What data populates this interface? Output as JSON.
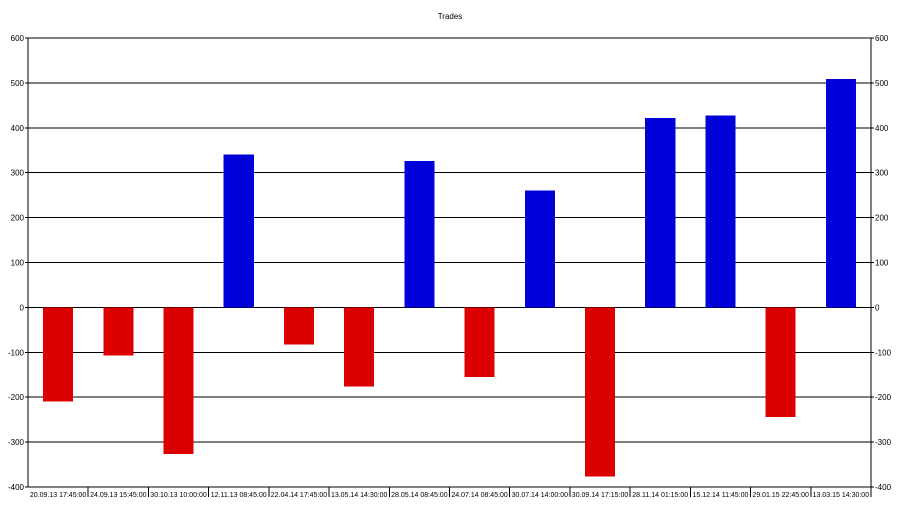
{
  "chart_data": {
    "type": "bar",
    "title": "Trades",
    "xlabel": "",
    "ylabel": "",
    "ylim": [
      -400,
      600
    ],
    "yticks": [
      600,
      500,
      400,
      300,
      200,
      100,
      0,
      -100,
      -200,
      -300,
      -400
    ],
    "grid": true,
    "legend": "none",
    "categories": [
      "20.09.13 17:45:00",
      "24.09.13 15:45:00",
      "30.10.13 10:00:00",
      "12.11.13 08:45:00",
      "22.04.14 17:45:00",
      "13.05.14 14:30:00",
      "28.05.14 08:45:00",
      "24.07.14 08:45:00",
      "30.07.14 14:00:00",
      "30.09.14 17:15:00",
      "28.11.14 01:15:00",
      "15.12.14 11:45:00",
      "29.01.15 22:45:00",
      "13.03.15 14:30:00"
    ],
    "values": [
      -210,
      -107,
      -327,
      341,
      -83,
      -176,
      326,
      -155,
      260,
      -377,
      422,
      427,
      -244,
      509
    ],
    "colors": {
      "positive": "#0000d8",
      "negative": "#dd0000",
      "grid": "#000000",
      "axis": "#000000"
    }
  }
}
